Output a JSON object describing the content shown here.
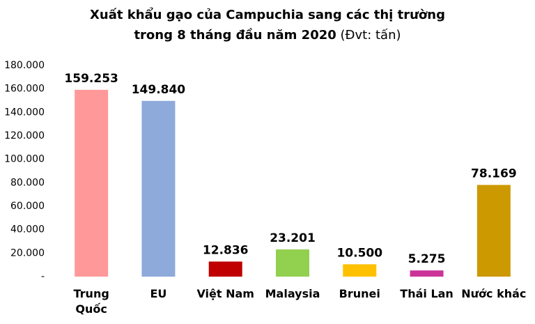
{
  "chart_data": {
    "type": "bar",
    "title": [
      "Xuất khẩu gạo của Campuchia sang các thị trường",
      "trong 8 tháng đầu năm 2020"
    ],
    "subtitle": "(Đvt: tấn)",
    "categories": [
      "Trung Quốc",
      "EU",
      "Việt Nam",
      "Malaysia",
      "Brunei",
      "Thái Lan",
      "Nước khác"
    ],
    "values": [
      159253,
      149840,
      12836,
      23201,
      10500,
      5275,
      78169
    ],
    "value_labels": [
      "159.253",
      "149.840",
      "12.836",
      "23.201",
      "10.500",
      "5.275",
      "78.169"
    ],
    "colors": [
      "#ff9999",
      "#8eaadb",
      "#c00000",
      "#92d050",
      "#ffc000",
      "#cc3399",
      "#cc9900"
    ],
    "ylim": [
      0,
      180000
    ],
    "yticks": [
      {
        "value": 0,
        "label": "-"
      },
      {
        "value": 20000,
        "label": "20.000"
      },
      {
        "value": 40000,
        "label": "40.000"
      },
      {
        "value": 60000,
        "label": "60.000"
      },
      {
        "value": 80000,
        "label": "80.000"
      },
      {
        "value": 100000,
        "label": "100.000"
      },
      {
        "value": 120000,
        "label": "120.000"
      },
      {
        "value": 140000,
        "label": "140.000"
      },
      {
        "value": 160000,
        "label": "160.000"
      },
      {
        "value": 180000,
        "label": "180.000"
      }
    ],
    "grid": false
  }
}
